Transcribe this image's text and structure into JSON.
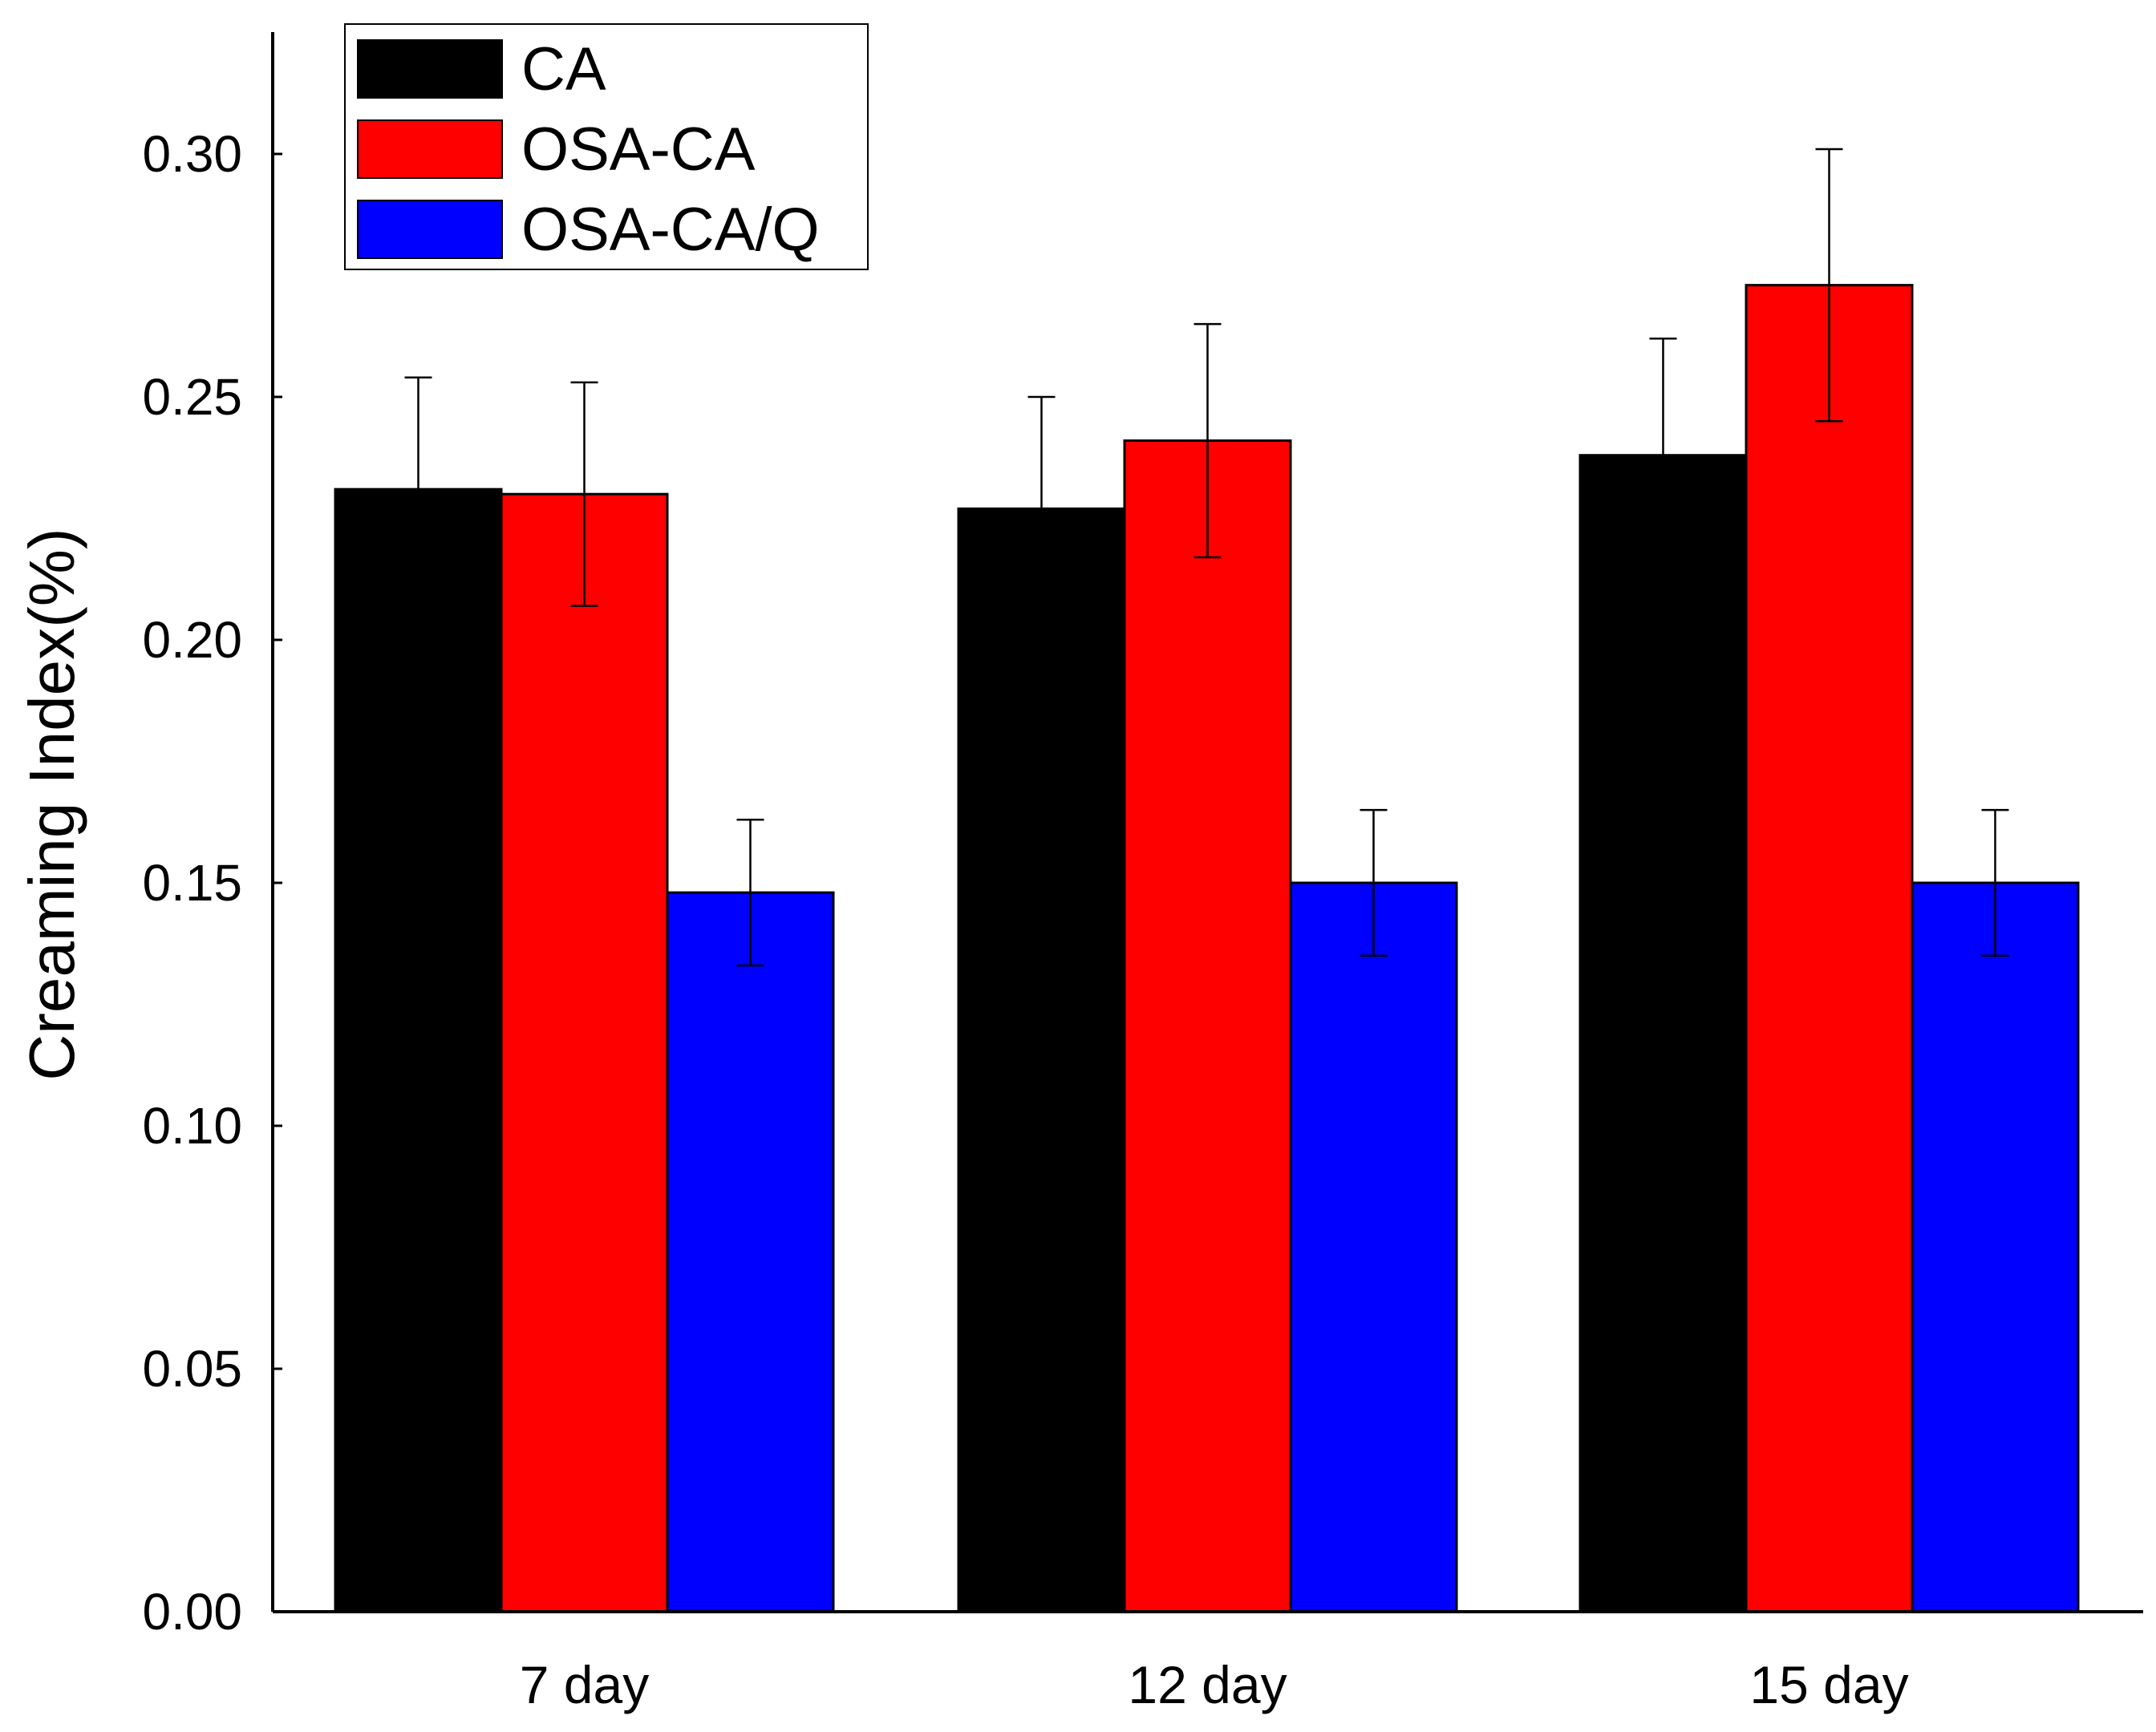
{
  "chart_data": {
    "type": "bar",
    "title": "",
    "xlabel": "",
    "ylabel": "Creaming Index(%)",
    "ylim": [
      0,
      0.32
    ],
    "yticks": [
      "0.00",
      "0.05",
      "0.10",
      "0.15",
      "0.20",
      "0.25",
      "0.30"
    ],
    "grid": false,
    "legend_position": "top-left",
    "categories": [
      "7 day",
      "12 day",
      "15 day"
    ],
    "series": [
      {
        "name": "CA",
        "color": "#000000",
        "values": [
          0.231,
          0.227,
          0.238
        ],
        "errors": [
          0.023,
          0.023,
          0.024
        ]
      },
      {
        "name": "OSA-CA",
        "color": "#ff0000",
        "values": [
          0.23,
          0.241,
          0.273
        ],
        "errors": [
          0.023,
          0.024,
          0.028
        ]
      },
      {
        "name": "OSA-CA/Q",
        "color": "#0000ff",
        "values": [
          0.148,
          0.15,
          0.15
        ],
        "errors": [
          0.015,
          0.015,
          0.015
        ]
      }
    ]
  }
}
